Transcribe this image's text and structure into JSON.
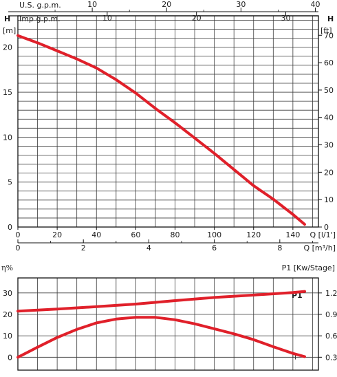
{
  "chart_data": [
    {
      "type": "line",
      "top_scale_us": {
        "label": "U.S.  g.p.m.",
        "ticks": [
          10,
          20,
          30,
          40
        ]
      },
      "top_scale_imp": {
        "label": "Imp  g.p.m.",
        "ticks": [
          10,
          20,
          30
        ]
      },
      "ylabel_left": "H",
      "ylabel_left_unit": "[m]",
      "ylim_left": [
        0,
        23.5
      ],
      "yticks_left": [
        0,
        5,
        10,
        15,
        20
      ],
      "ylabel_right": "H",
      "ylabel_right_unit": "[ft]",
      "yticks_right": [
        0,
        10,
        20,
        30,
        40,
        50,
        60,
        70
      ],
      "x_lmin": {
        "label": "Q [l/1']",
        "ticks": [
          0,
          20,
          40,
          60,
          80,
          100,
          120,
          140
        ],
        "xlim": [
          0,
          153
        ]
      },
      "x_m3h": {
        "label": "Q [m³/h]",
        "ticks": [
          0,
          2,
          4,
          6,
          8
        ]
      },
      "grid": true,
      "series": [
        {
          "color": "#e0202a",
          "x": [
            0,
            10,
            20,
            30,
            40,
            50,
            60,
            70,
            80,
            90,
            100,
            110,
            120,
            130,
            140,
            146
          ],
          "y": [
            21.3,
            20.5,
            19.6,
            18.7,
            17.7,
            16.4,
            14.9,
            13.2,
            11.6,
            9.9,
            8.2,
            6.4,
            4.6,
            3.1,
            1.4,
            0.3
          ]
        }
      ]
    },
    {
      "type": "line",
      "ylabel_left": "η%",
      "yticks_left": [
        0,
        10,
        20,
        30
      ],
      "ylim_left": [
        -6,
        37
      ],
      "ylabel_right": "P1 [Kw/Stage]",
      "yticks_right": [
        "0.3",
        "0.6",
        "0.9",
        "1.2"
      ],
      "xlim": [
        0,
        153
      ],
      "grid": true,
      "series": [
        {
          "name": "P1",
          "color": "#e0202a",
          "x": [
            0,
            20,
            40,
            60,
            80,
            100,
            120,
            140,
            146
          ],
          "y": [
            21.5,
            22.5,
            23.6,
            24.8,
            26.4,
            27.9,
            29.0,
            30.2,
            30.7
          ]
        },
        {
          "name": "η",
          "color": "#e0202a",
          "x": [
            0,
            10,
            20,
            30,
            40,
            50,
            60,
            70,
            80,
            90,
            100,
            110,
            120,
            130,
            140,
            146
          ],
          "y": [
            0,
            4.7,
            9.2,
            13.0,
            16.0,
            17.8,
            18.6,
            18.6,
            17.5,
            15.6,
            13.3,
            10.9,
            8.2,
            4.9,
            1.8,
            0.3
          ]
        }
      ]
    }
  ]
}
